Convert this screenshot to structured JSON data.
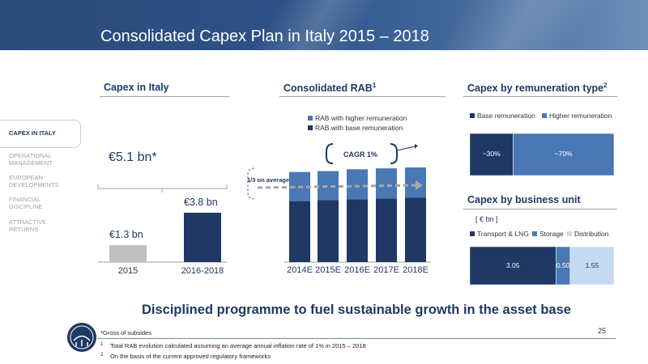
{
  "header": {
    "title": "Consolidated Capex Plan in Italy 2015 – 2018"
  },
  "sections": {
    "capex_italy": "Capex in Italy",
    "consolidated_rab": "Consolidated RAB",
    "consolidated_rab_sup": "1",
    "remuneration": "Capex by remuneration type",
    "remuneration_sup": "2",
    "business_unit": "Capex by business unit"
  },
  "nav": {
    "items": [
      {
        "label": "CAPEX IN ITALY",
        "active": true
      },
      {
        "label": "OPERATIONAL MANAGEMENT",
        "active": false
      },
      {
        "label": "EUROPEAN DEVELOPMENTS",
        "active": false
      },
      {
        "label": "FINANCIAL DISCIPLINE",
        "active": false
      },
      {
        "label": "ATTRACTIVE RETURNS",
        "active": false
      }
    ]
  },
  "annotations": {
    "total": "€5.1 bn*",
    "cagr": "CAGR 1%",
    "third": "1/3 on average",
    "unit": "[ € bn ]"
  },
  "headline": "Disciplined programme to fuel sustainable growth in the asset base",
  "footnotes": {
    "gross": "*Gross of subsides",
    "note1_num": "1",
    "note1": "Total RAB evolution calculated assuming an average annual inflation rate of 1% in 2015 – 2018",
    "note2_num": "2",
    "note2": "On the basis of the current approved regulatory frameworks"
  },
  "page_number": "25",
  "colors": {
    "navy": "#1f3864",
    "mid_blue": "#4a78b5",
    "light_blue": "#c6d9f0",
    "grey": "#bfbfbf",
    "dark_navy": "#002060"
  },
  "chart_data": [
    {
      "type": "bar",
      "title": "Capex in Italy",
      "categories": [
        "2015",
        "2016-2018"
      ],
      "values": [
        1.3,
        3.8
      ],
      "value_labels": [
        "€1.3 bn",
        "€3.8 bn"
      ],
      "colors": [
        "#bfbfbf",
        "#1f3864"
      ]
    },
    {
      "type": "bar",
      "stacked": true,
      "title": "Consolidated RAB",
      "categories": [
        "2014E",
        "2015E",
        "2016E",
        "2017E",
        "2018E"
      ],
      "series": [
        {
          "name": "RAB with base remuneration",
          "values": [
            67,
            68,
            69,
            70,
            71
          ],
          "color": "#1f3864"
        },
        {
          "name": "RAB with higher remuneration",
          "values": [
            32,
            32,
            33,
            33,
            33
          ],
          "color": "#4a78b5"
        }
      ],
      "legend_order": [
        "RAB with higher remuneration",
        "RAB with base remuneration"
      ]
    },
    {
      "type": "bar",
      "stacked": true,
      "orientation": "horizontal",
      "title": "Capex by remuneration type",
      "series": [
        {
          "name": "Base remuneration",
          "values": [
            30
          ],
          "label": "~30%",
          "color": "#1f3864"
        },
        {
          "name": "Higher remuneration",
          "values": [
            70
          ],
          "label": "~70%",
          "color": "#4a78b5"
        }
      ]
    },
    {
      "type": "bar",
      "stacked": true,
      "orientation": "horizontal",
      "title": "Capex by business unit",
      "series": [
        {
          "name": "Transport & LNG",
          "values": [
            3.05
          ],
          "label": "3.05",
          "color": "#1f3864"
        },
        {
          "name": "Storage",
          "values": [
            0.5
          ],
          "label": "0.50",
          "color": "#4a78b5"
        },
        {
          "name": "Distribution",
          "values": [
            1.55
          ],
          "label": "1.55",
          "color": "#c6d9f0"
        }
      ]
    }
  ]
}
